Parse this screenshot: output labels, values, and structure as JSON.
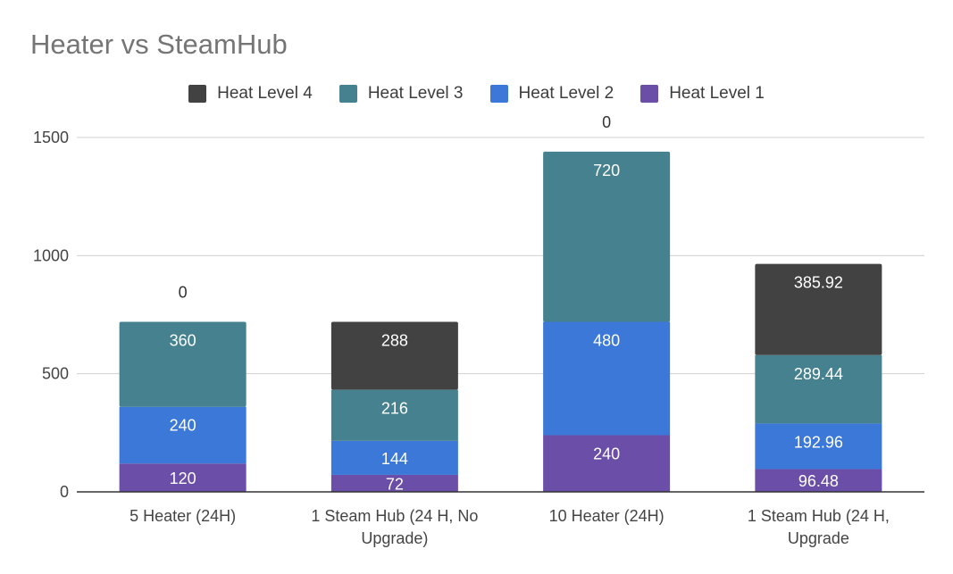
{
  "chart_data": {
    "type": "stacked-bar",
    "title": "Heater vs SteamHub",
    "categories": [
      "5 Heater (24H)",
      "1 Steam Hub (24 H, No Upgrade)",
      "10 Heater (24H)",
      "1 Steam Hub (24 H, Upgrade"
    ],
    "category_label_lines": [
      [
        "5 Heater (24H)"
      ],
      [
        "1 Steam Hub (24 H, No",
        "Upgrade)"
      ],
      [
        "10 Heater (24H)"
      ],
      [
        "1 Steam Hub (24 H,",
        "Upgrade"
      ]
    ],
    "series": [
      {
        "name": "Heat Level 1",
        "color": "#6a4ea8",
        "values": [
          120,
          72,
          240,
          96.48
        ],
        "labels": [
          "120",
          "72",
          "240",
          "96.48"
        ]
      },
      {
        "name": "Heat Level 2",
        "color": "#3c78d8",
        "values": [
          240,
          144,
          480,
          192.96
        ],
        "labels": [
          "240",
          "144",
          "480",
          "192.96"
        ]
      },
      {
        "name": "Heat Level 3",
        "color": "#45818e",
        "values": [
          360,
          216,
          720,
          289.44
        ],
        "labels": [
          "360",
          "216",
          "720",
          "289.44"
        ]
      },
      {
        "name": "Heat Level 4",
        "color": "#424242",
        "values": [
          0,
          288,
          0,
          385.92
        ],
        "labels": [
          "0",
          "288",
          "0",
          "385.92"
        ]
      }
    ],
    "legend_order": [
      "Heat Level 4",
      "Heat Level 3",
      "Heat Level 2",
      "Heat Level 1"
    ],
    "legend_position": "top",
    "y_ticks": [
      0,
      500,
      1000,
      1500
    ],
    "ylim": [
      0,
      1500
    ],
    "grid": true
  }
}
